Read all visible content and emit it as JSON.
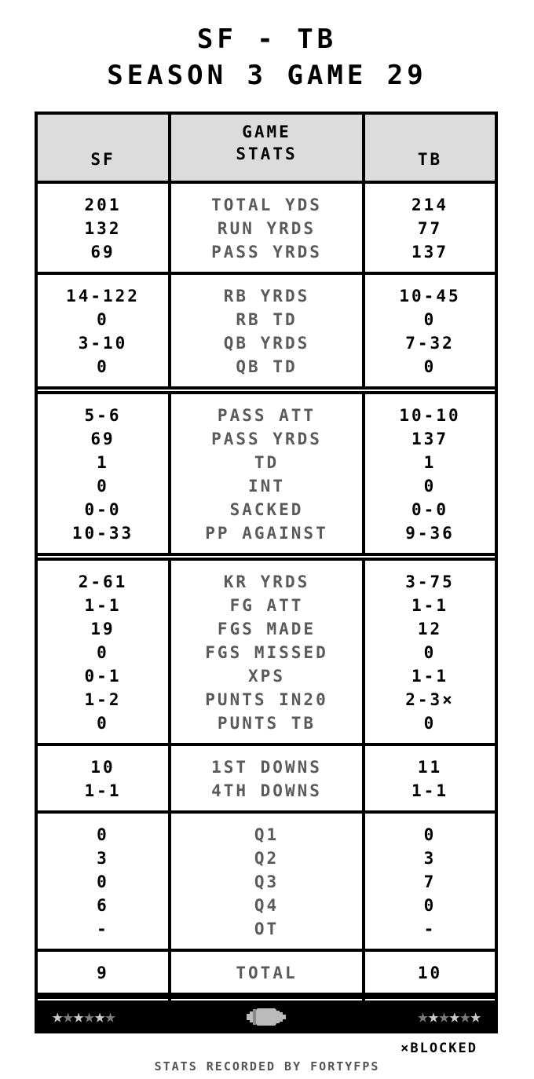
{
  "title": {
    "line1": "SF - TB",
    "line2": "SEASON 3 GAME 29"
  },
  "header": {
    "left": "SF",
    "middle": "GAME\nSTATS",
    "right": "TB"
  },
  "sections": [
    {
      "sf": [
        "201",
        "132",
        "69"
      ],
      "labels": [
        "TOTAL YDS",
        "RUN YRDS",
        "PASS YRDS"
      ],
      "tb": [
        "214",
        "77",
        "137"
      ]
    },
    {
      "sf": [
        "14-122",
        "0",
        "3-10",
        "0"
      ],
      "labels": [
        "RB YRDS",
        "RB TD",
        "QB YRDS",
        "QB TD"
      ],
      "tb": [
        "10-45",
        "0",
        "7-32",
        "0"
      ]
    },
    {
      "sf": [
        "5-6",
        "69",
        "1",
        "0",
        "0-0",
        "10-33"
      ],
      "labels": [
        "PASS ATT",
        "PASS YRDS",
        "TD",
        "INT",
        "SACKED",
        "PP AGAINST"
      ],
      "tb": [
        "10-10",
        "137",
        "1",
        "0",
        "0-0",
        "9-36"
      ]
    },
    {
      "sf": [
        "2-61",
        "1-1",
        "19",
        "0",
        "0-1",
        "1-2",
        "0"
      ],
      "labels": [
        "KR YRDS",
        "FG ATT",
        "FGS MADE",
        "FGS MISSED",
        "XPS",
        "PUNTS IN20",
        "PUNTS TB"
      ],
      "tb": [
        "3-75",
        "1-1",
        "12",
        "0",
        "1-1",
        "2-3×",
        "0"
      ]
    },
    {
      "sf": [
        "10",
        "1-1"
      ],
      "labels": [
        "1ST DOWNS",
        "4TH DOWNS"
      ],
      "tb": [
        "11",
        "1-1"
      ]
    },
    {
      "sf": [
        "0",
        "3",
        "0",
        "6",
        "-"
      ],
      "labels": [
        "Q1",
        "Q2",
        "Q3",
        "Q4",
        "OT"
      ],
      "tb": [
        "0",
        "3",
        "7",
        "0",
        "-"
      ]
    },
    {
      "sf": [
        "9"
      ],
      "labels": [
        "TOTAL"
      ],
      "tb": [
        "10"
      ]
    }
  ],
  "footer": {
    "sf_stars": [
      "light",
      "dark",
      "light",
      "dark",
      "light",
      "dark"
    ],
    "tb_stars": [
      "dark",
      "light",
      "dark",
      "light",
      "dark",
      "light"
    ],
    "star_colors": {
      "light": "#c8c8c8",
      "dark": "#7a7a7a"
    },
    "center_icon": "football-icon",
    "blocked_note": "×BLOCKED",
    "credit": "STATS RECORDED BY FORTYFPS"
  }
}
